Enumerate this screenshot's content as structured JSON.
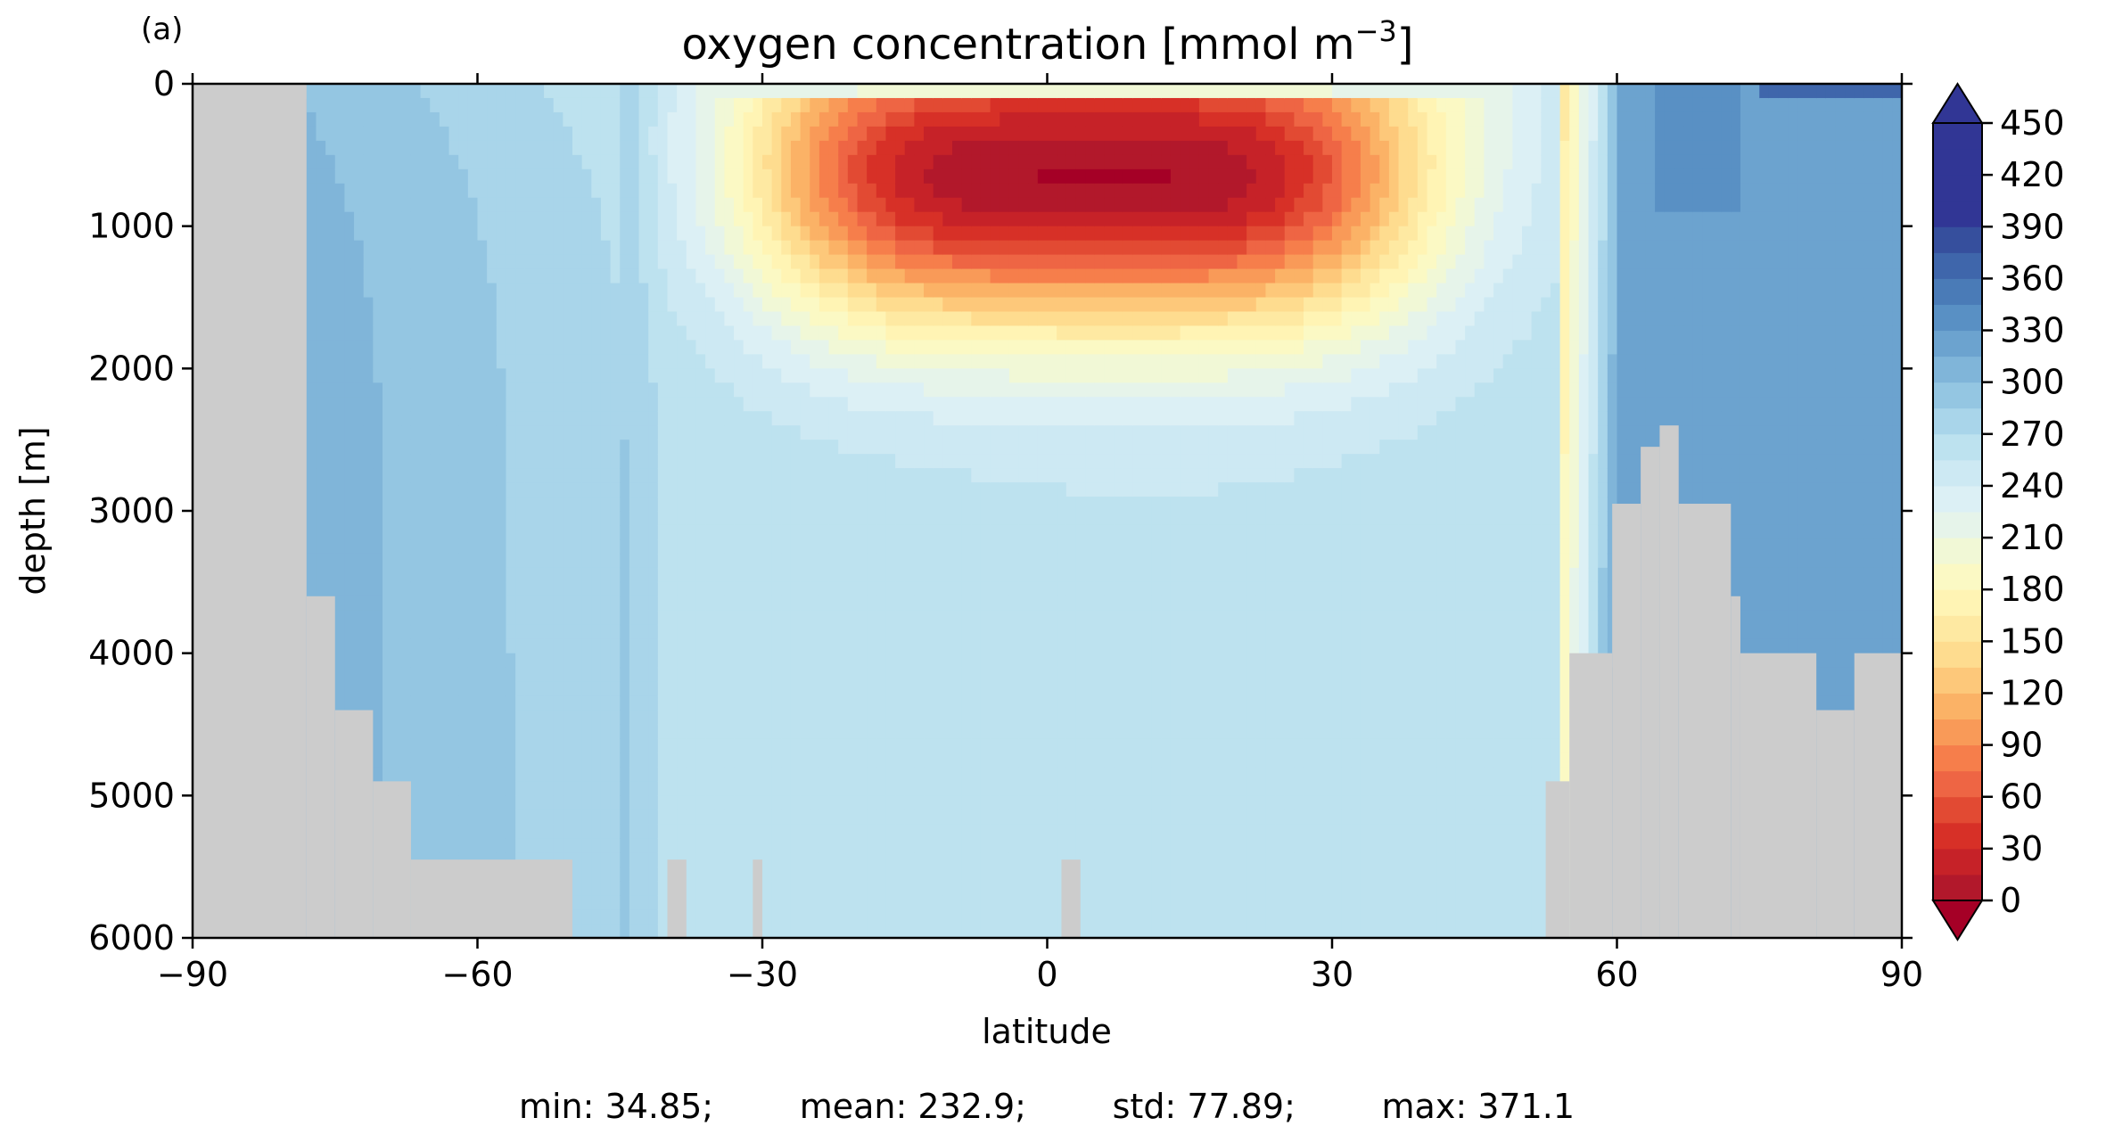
{
  "panel_label": "(a)",
  "title": "oxygen concentration [mmol m",
  "title_exponent": "−3",
  "title_close": "]",
  "stats_text": "min: 34.85;        mean: 232.9;        std: 77.89;        max: 371.1",
  "chart_data": {
    "type": "heatmap",
    "title": "oxygen concentration [mmol m−3]",
    "xlabel": "latitude",
    "ylabel": "depth [m]",
    "xlim": [
      -90,
      90
    ],
    "ylim": [
      6000,
      0
    ],
    "y_inverted": true,
    "xticks": [
      -90,
      -60,
      -30,
      0,
      30,
      60,
      90
    ],
    "xtick_labels": [
      "−90",
      "−60",
      "−30",
      "0",
      "30",
      "60",
      "90"
    ],
    "yticks": [
      0,
      1000,
      2000,
      3000,
      4000,
      5000,
      6000
    ],
    "ytick_labels": [
      "0",
      "1000",
      "2000",
      "3000",
      "4000",
      "5000",
      "6000"
    ],
    "colorbar": {
      "min": 0,
      "max": 450,
      "step": 15,
      "extend": "both",
      "tick_values": [
        0,
        30,
        60,
        90,
        120,
        150,
        180,
        210,
        240,
        270,
        300,
        330,
        360,
        390,
        420,
        450
      ],
      "tick_labels": [
        "0",
        "30",
        "60",
        "90",
        "120",
        "150",
        "180",
        "210",
        "240",
        "270",
        "300",
        "330",
        "360",
        "390",
        "420",
        "450"
      ],
      "colors": [
        "#b2182b",
        "#c62228",
        "#d73027",
        "#e24a33",
        "#ee6544",
        "#f67e4b",
        "#f99a58",
        "#fbb266",
        "#fdc87a",
        "#fedc8f",
        "#fee9a2",
        "#fff4b4",
        "#fbf9c4",
        "#f1f8d6",
        "#e6f4ea",
        "#dcf0f5",
        "#cde9f3",
        "#bde2ef",
        "#a9d5ea",
        "#94c6e2",
        "#80b5d9",
        "#6ca3cf",
        "#5990c4",
        "#4a7bb7",
        "#3f66ab",
        "#364f9d",
        "#313695"
      ],
      "under_color": "#a50026",
      "over_color": "#313695"
    },
    "land_color": "#cccccc",
    "statistics": {
      "min": 34.85,
      "mean": 232.9,
      "std": 77.89,
      "max": 371.1
    }
  }
}
